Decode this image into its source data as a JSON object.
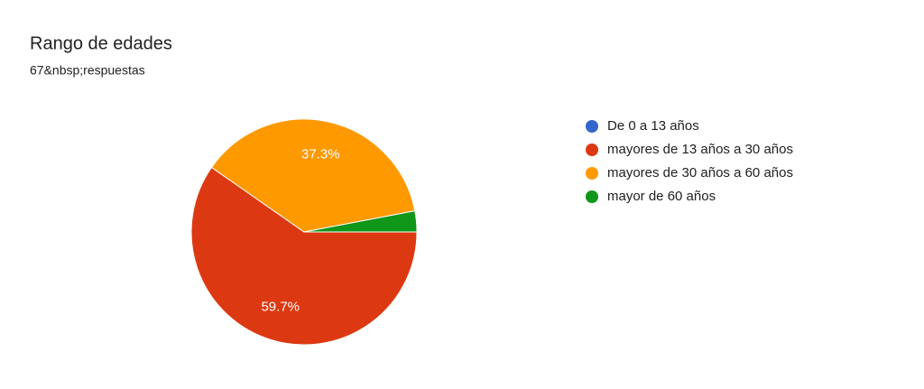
{
  "chart_data": {
    "type": "pie",
    "title": "Rango de edades",
    "subtitle": "67&nbsp;respuestas",
    "categories": [
      "De 0 a 13 años",
      "mayores de 13 años a 30 años",
      "mayores de 30 años a 60 años",
      "mayor de 60 años"
    ],
    "values": [
      0,
      59.7,
      37.3,
      3
    ],
    "value_labels": [
      null,
      "59.7%",
      "37.3%",
      null
    ],
    "colors": [
      "#3366cc",
      "#dc3912",
      "#ff9900",
      "#109618"
    ],
    "legend": "right"
  }
}
